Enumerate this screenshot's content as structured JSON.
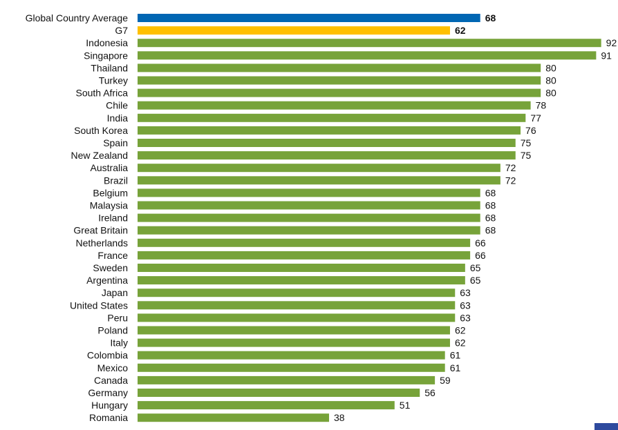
{
  "chart_data": {
    "type": "bar",
    "orientation": "horizontal",
    "title": "",
    "xlabel": "",
    "ylabel": "",
    "xlim": [
      0,
      100
    ],
    "grid": false,
    "legend": "none",
    "categories": [
      "Global Country Average",
      "G7",
      "Indonesia",
      "Singapore",
      "Thailand",
      "Turkey",
      "South Africa",
      "Chile",
      "India",
      "South Korea",
      "Spain",
      "New Zealand",
      "Australia",
      "Brazil",
      "Belgium",
      "Malaysia",
      "Ireland",
      "Great Britain",
      "Netherlands",
      "France",
      "Sweden",
      "Argentina",
      "Japan",
      "United States",
      "Peru",
      "Poland",
      "Italy",
      "Colombia",
      "Mexico",
      "Canada",
      "Germany",
      "Hungary",
      "Romania"
    ],
    "values": [
      68,
      62,
      92,
      91,
      80,
      80,
      80,
      78,
      77,
      76,
      75,
      75,
      72,
      72,
      68,
      68,
      68,
      68,
      66,
      66,
      65,
      65,
      63,
      63,
      63,
      62,
      62,
      61,
      61,
      59,
      56,
      51,
      38
    ],
    "bar_colors": {
      "Global Country Average": "#0066b3",
      "G7": "#ffc000",
      "default": "#77a33a"
    },
    "bold_value_labels": [
      "Global Country Average",
      "G7"
    ]
  },
  "colors": {
    "corner_mark": "#2e4a9e"
  }
}
